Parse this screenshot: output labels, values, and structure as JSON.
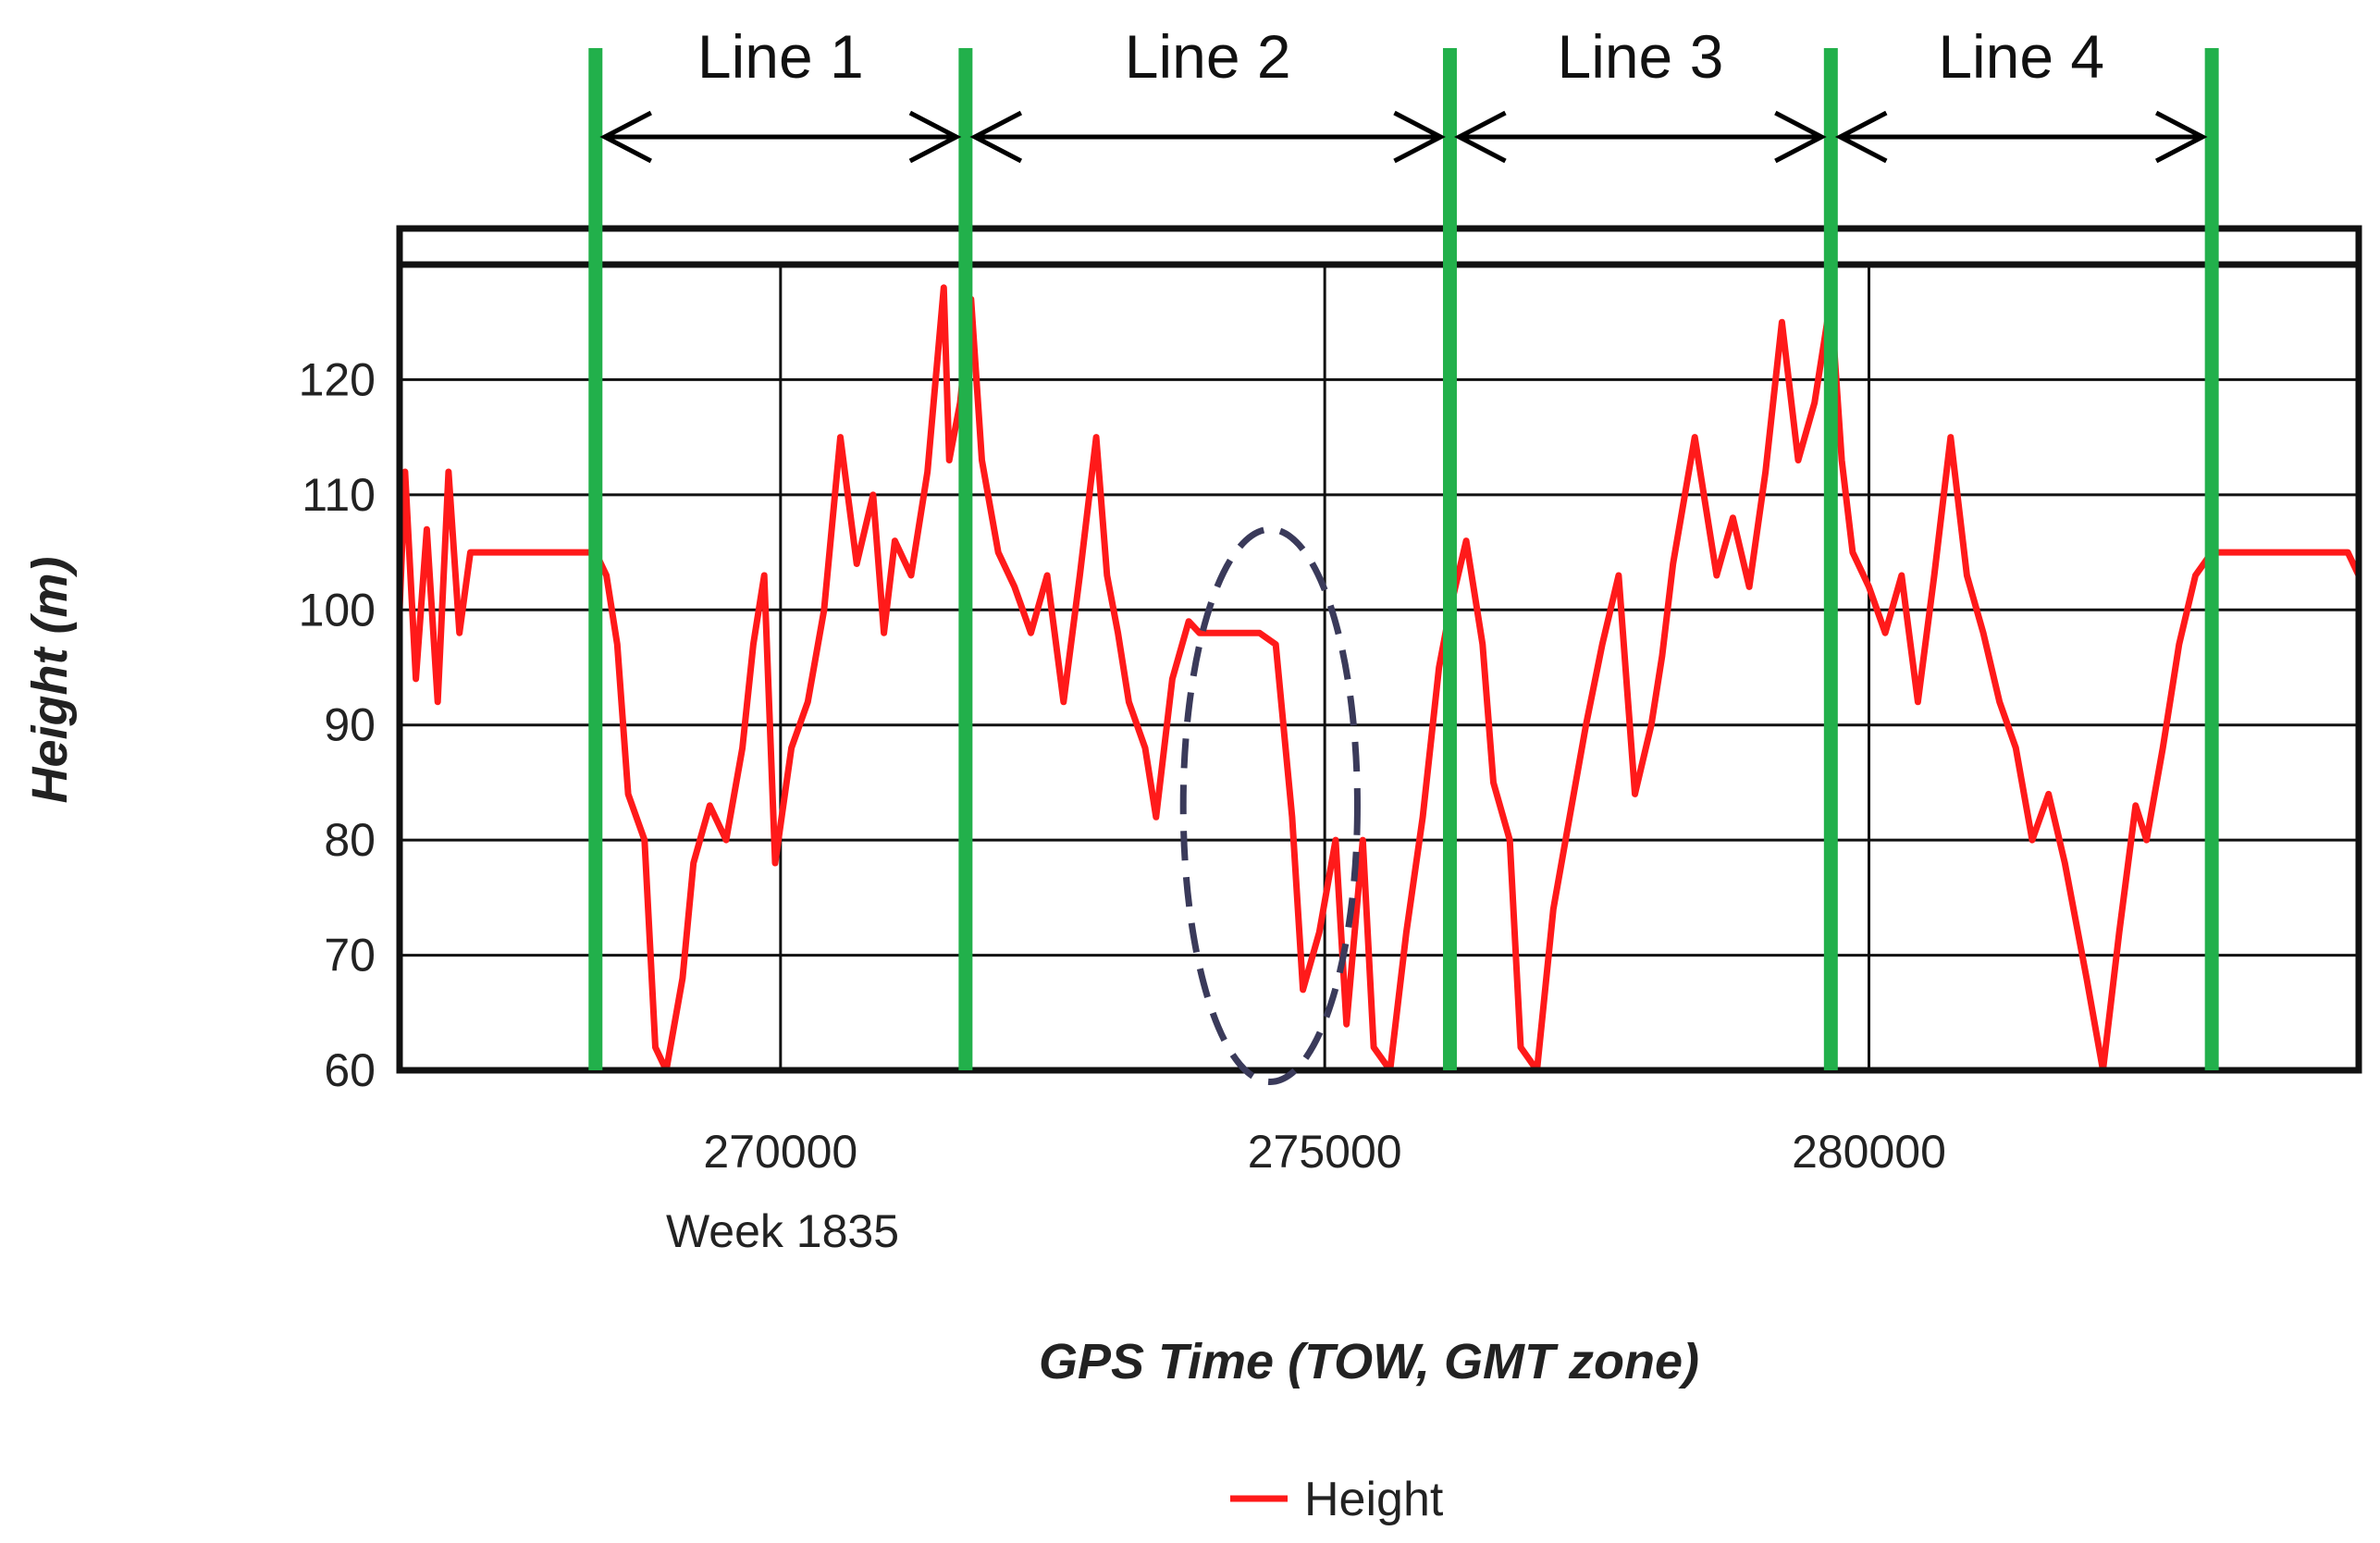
{
  "chart_data": {
    "type": "line",
    "title": "",
    "xlabel": "GPS Time (TOW, GMT zone)",
    "ylabel": "Height (m)",
    "x_tick_values": [
      270000,
      275000,
      280000
    ],
    "x_tick_labels": [
      "270000",
      "275000",
      "280000"
    ],
    "x_sublabel": "Week 1835",
    "y_ticks": [
      60,
      70,
      80,
      90,
      100,
      110,
      120
    ],
    "xlim": [
      266500,
      284500
    ],
    "ylim": [
      60,
      130
    ],
    "grid": true,
    "legend": {
      "position": "bottom-center"
    },
    "colors": {
      "series": "#ff1a1a",
      "markers": "#22b04b",
      "ellipse": "#3a3a5a",
      "arrows": "#000000"
    },
    "series": [
      {
        "name": "Height",
        "x": [
          266500,
          266550,
          266650,
          266750,
          266850,
          266950,
          267050,
          267150,
          267300,
          267400,
          267600,
          268000,
          268300,
          268400,
          268500,
          268600,
          268750,
          268850,
          268950,
          269100,
          269200,
          269350,
          269500,
          269650,
          269750,
          269850,
          269950,
          270100,
          270250,
          270400,
          270550,
          270700,
          270850,
          270950,
          271050,
          271200,
          271350,
          271500,
          271550,
          271650,
          271750,
          271850,
          272000,
          272150,
          272300,
          272450,
          272600,
          272750,
          272900,
          273000,
          273100,
          273200,
          273350,
          273450,
          273600,
          273750,
          273850,
          274000,
          274200,
          274400,
          274550,
          274700,
          274800,
          274950,
          275100,
          275200,
          275350,
          275450,
          275600,
          275750,
          275900,
          276050,
          276150,
          276300,
          276450,
          276550,
          276700,
          276800,
          276950,
          277100,
          277250,
          277400,
          277550,
          277700,
          277850,
          278000,
          278100,
          278200,
          278400,
          278600,
          278750,
          278900,
          279050,
          279200,
          279350,
          279500,
          279650,
          279750,
          279850,
          280000,
          280150,
          280300,
          280450,
          280600,
          280750,
          280900,
          281050,
          281200,
          281350,
          281500,
          281650,
          281800,
          282000,
          282150,
          282300,
          282450,
          282550,
          282700,
          282850,
          283000,
          283150,
          283300,
          283500,
          284000,
          284400,
          284500
        ],
        "y": [
          100,
          112,
          94,
          107,
          92,
          112,
          98,
          105,
          105,
          105,
          105,
          105,
          105,
          103,
          97,
          84,
          80,
          62,
          60,
          68,
          78,
          83,
          80,
          88,
          97,
          103,
          78,
          88,
          92,
          100,
          115,
          104,
          110,
          98,
          106,
          103,
          112,
          128,
          113,
          118,
          127,
          113,
          105,
          102,
          98,
          103,
          92,
          103,
          115,
          103,
          98,
          92,
          88,
          82,
          94,
          99,
          98,
          98,
          98,
          98,
          97,
          82,
          67,
          72,
          80,
          64,
          80,
          62,
          60,
          72,
          82,
          95,
          100,
          106,
          97,
          85,
          80,
          62,
          60,
          74,
          82,
          90,
          97,
          103,
          84,
          90,
          96,
          104,
          115,
          103,
          108,
          102,
          112,
          125,
          113,
          118,
          127,
          113,
          105,
          102,
          98,
          103,
          92,
          103,
          115,
          103,
          98,
          92,
          88,
          80,
          84,
          78,
          68,
          60,
          72,
          83,
          80,
          88,
          97,
          103,
          105,
          105,
          105,
          105,
          105,
          103
        ]
      }
    ],
    "markers": [
      {
        "x": 268300,
        "label": ""
      },
      {
        "x": 271700,
        "label": ""
      },
      {
        "x": 276150,
        "label": ""
      },
      {
        "x": 279650,
        "label": ""
      },
      {
        "x": 283150,
        "label": ""
      }
    ],
    "segments": [
      {
        "label": "Line 1",
        "from": 268300,
        "to": 271700
      },
      {
        "label": "Line 2",
        "from": 271700,
        "to": 276150
      },
      {
        "label": "Line 3",
        "from": 276150,
        "to": 279650
      },
      {
        "label": "Line 4",
        "from": 279650,
        "to": 283150
      }
    ],
    "ellipse": {
      "cx": 274500,
      "cy": 83,
      "rx": 800,
      "ry": 24
    }
  }
}
